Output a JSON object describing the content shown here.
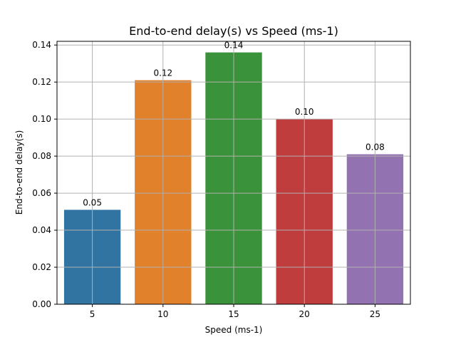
{
  "chart_data": {
    "type": "bar",
    "title": "End-to-end delay(s) vs Speed (ms-1)",
    "xlabel": "Speed (ms-1)",
    "ylabel": "End-to-end delay(s)",
    "categories": [
      "5",
      "10",
      "15",
      "20",
      "25"
    ],
    "values": [
      0.051,
      0.121,
      0.136,
      0.1,
      0.081
    ],
    "data_labels": [
      "0.05",
      "0.12",
      "0.14",
      "0.10",
      "0.08"
    ],
    "colors": [
      "#3274a1",
      "#e1812c",
      "#3a923a",
      "#c03d3e",
      "#9372b2"
    ],
    "ylim": [
      0,
      0.142
    ],
    "yticks": [
      0.0,
      0.02,
      0.04,
      0.06,
      0.08,
      0.1,
      0.12,
      0.14
    ],
    "ytick_labels": [
      "0.00",
      "0.02",
      "0.04",
      "0.06",
      "0.08",
      "0.10",
      "0.12",
      "0.14"
    ],
    "grid": true,
    "legend": "none"
  }
}
